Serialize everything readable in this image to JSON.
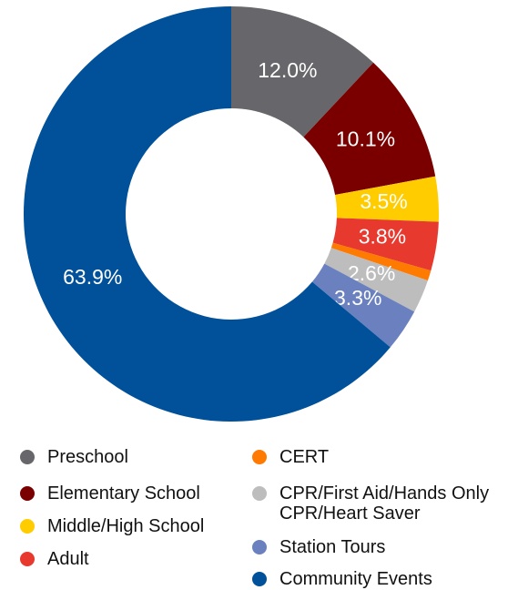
{
  "chart_data": {
    "type": "donut",
    "categories": [
      "Preschool",
      "Elementary School",
      "Middle/High School",
      "Adult",
      "CERT",
      "CPR/First Aid/Hands Only CPR/Heart Saver",
      "Station Tours",
      "Community Events"
    ],
    "values": [
      12.0,
      10.1,
      3.5,
      3.8,
      0.8,
      2.6,
      3.3,
      63.9
    ],
    "value_labels": [
      "12.0%",
      "10.1%",
      "3.5%",
      "3.8%",
      null,
      "2.6%",
      "3.3%",
      "63.9%"
    ],
    "colors": [
      "#67676b",
      "#7a0000",
      "#ffcc00",
      "#e8392e",
      "#ff7a00",
      "#bdbdbd",
      "#6a80bf",
      "#00509a"
    ],
    "legend": "bottom"
  }
}
